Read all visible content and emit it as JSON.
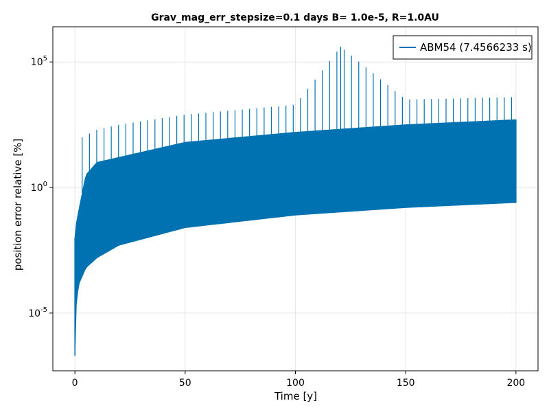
{
  "chart_data": {
    "type": "line",
    "title": "Grav_mag_err_stepsize=0.1 days B= 1.0e-5, R=1.0AU",
    "xlabel": "Time [y]",
    "ylabel": "position error relative [%]",
    "xlim": [
      -10,
      210
    ],
    "ylim_log10": [
      -7.3,
      6.4
    ],
    "yscale": "log",
    "grid": true,
    "legend_position": "top-right",
    "x_ticks": [
      0,
      50,
      100,
      150,
      200
    ],
    "x_tick_labels": [
      "0",
      "50",
      "100",
      "150",
      "200"
    ],
    "y_ticks_log10": [
      -5,
      0,
      5
    ],
    "y_tick_labels": [
      {
        "base": "10",
        "exp": "-5"
      },
      {
        "base": "10",
        "exp": "0"
      },
      {
        "base": "10",
        "exp": "5"
      }
    ],
    "series": [
      {
        "name": "ABM54 (7.4566233 s)",
        "color": "#0072b2",
        "x_range": [
          0,
          200
        ],
        "spike_period": 3.3,
        "spike_count": 61,
        "lower_envelope_log10": {
          "x": [
            0,
            0.1,
            0.5,
            1,
            2,
            5,
            10,
            20,
            50,
            100,
            150,
            200
          ],
          "y": [
            -6.7,
            -5.8,
            -4.8,
            -4.3,
            -3.8,
            -3.2,
            -2.8,
            -2.3,
            -1.6,
            -1.1,
            -0.8,
            -0.6
          ]
        },
        "upper_band_log10": {
          "x": [
            0,
            0.5,
            2,
            5,
            10,
            50,
            100,
            150,
            200
          ],
          "y": [
            -2.0,
            -1.5,
            -0.8,
            0.5,
            1.0,
            1.8,
            2.2,
            2.5,
            2.7
          ]
        },
        "spike_peak_log10": {
          "x": [
            3.3,
            10,
            20,
            50,
            100,
            120.5,
            150,
            200
          ],
          "y": [
            2.0,
            2.3,
            2.5,
            2.9,
            3.3,
            5.6,
            3.5,
            3.6
          ]
        }
      }
    ]
  }
}
